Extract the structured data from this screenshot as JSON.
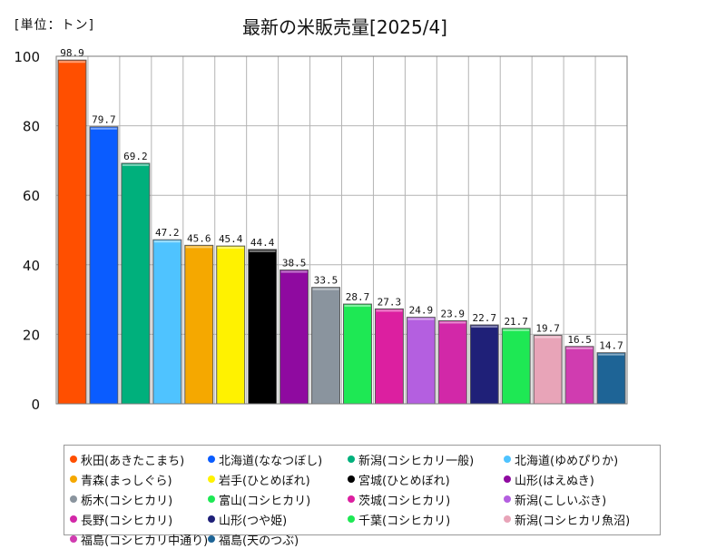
{
  "unit_label": "[単位：トン]",
  "chart_data": {
    "type": "bar",
    "title": "最新の米販売量[2025/4]",
    "ylim": [
      0,
      100
    ],
    "yticks": [
      0,
      20,
      40,
      60,
      80,
      100
    ],
    "grid": true,
    "legend_position": "bottom",
    "categories": [
      "秋田(あきたこまち)",
      "北海道(ななつぼし)",
      "新潟(コシヒカリ一般)",
      "北海道(ゆめぴりか)",
      "青森(まっしぐら)",
      "岩手(ひとめぼれ)",
      "宮城(ひとめぼれ)",
      "山形(はえぬき)",
      "栃木(コシヒカリ)",
      "富山(コシヒカリ)",
      "茨城(コシヒカリ)",
      "新潟(こしいぶき)",
      "長野(コシヒカリ)",
      "山形(つや姫)",
      "千葉(コシヒカリ)",
      "新潟(コシヒカリ魚沼)",
      "福島(コシヒカリ中通り)",
      "福島(天のつぶ)"
    ],
    "values": [
      98.9,
      79.7,
      69.2,
      47.2,
      45.6,
      45.4,
      44.4,
      38.5,
      33.5,
      28.7,
      27.3,
      24.9,
      23.9,
      22.7,
      21.7,
      19.7,
      16.5,
      14.7
    ],
    "value_labels": [
      "98.9",
      "79.7",
      "69.2",
      "47.2",
      "45.6",
      "45.4",
      "44.4",
      "38.5",
      "33.5",
      "28.7",
      "27.3",
      "24.9",
      "23.9",
      "22.7",
      "21.7",
      "19.7",
      "16.5",
      "14.7"
    ],
    "colors": [
      "#ff4f00",
      "#0a5cff",
      "#00b07c",
      "#4fc3ff",
      "#f5a800",
      "#fff200",
      "#000000",
      "#8f0aa0",
      "#8a949e",
      "#1ee854",
      "#dc1fa0",
      "#b45fe0",
      "#d228a8",
      "#1f2078",
      "#1ee854",
      "#e8a4b8",
      "#d03cb0",
      "#1e6496"
    ]
  }
}
